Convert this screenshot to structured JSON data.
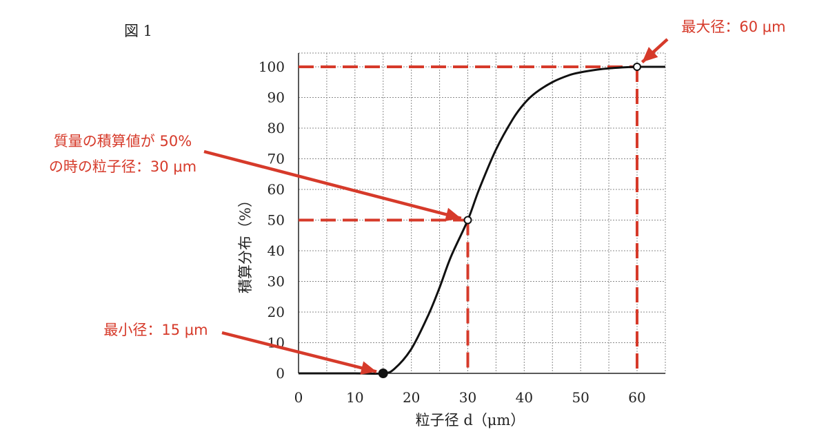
{
  "figure_label": "図 1",
  "colors": {
    "curve": "#111111",
    "grid": "#888888",
    "annotation": "#d63a2a",
    "axis": "#222222"
  },
  "chart_data": {
    "type": "line",
    "title": "",
    "xlabel": "粒子径 d（μm）",
    "ylabel": "積算分布（%）",
    "xlim": [
      0,
      65
    ],
    "ylim": [
      0,
      100
    ],
    "x_ticks": [
      0,
      10,
      20,
      30,
      40,
      50,
      60
    ],
    "y_ticks": [
      0,
      10,
      20,
      30,
      40,
      50,
      60,
      70,
      80,
      90,
      100
    ],
    "x_minor_step": 5,
    "y_minor_step": 10,
    "grid": true,
    "series": [
      {
        "x": [
          0,
          5,
          10,
          15,
          17,
          20,
          23,
          25,
          27,
          30,
          32,
          35,
          38,
          40,
          42,
          45,
          48,
          50,
          53,
          55,
          58,
          60,
          62,
          65
        ],
        "y": [
          0,
          0,
          0,
          0,
          1.5,
          8,
          19,
          28,
          38,
          50,
          60,
          73,
          83,
          88,
          91.5,
          95,
          97.3,
          98.2,
          99.1,
          99.5,
          99.85,
          100,
          100,
          100
        ]
      }
    ],
    "points": [
      {
        "x": 15,
        "y": 0,
        "style": "filled"
      },
      {
        "x": 30,
        "y": 50,
        "style": "open"
      },
      {
        "x": 60,
        "y": 100,
        "style": "open"
      }
    ],
    "annotations": [
      {
        "lines": [
          "最大径：60 μm"
        ],
        "target": {
          "x": 60,
          "y": 100
        }
      },
      {
        "lines": [
          "質量の積算値が 50%",
          "の時の粒子径：30 μm"
        ],
        "target": {
          "x": 30,
          "y": 50
        }
      },
      {
        "lines": [
          "最小径：15 μm"
        ],
        "target": {
          "x": 15,
          "y": 0
        }
      }
    ],
    "reference_lines": [
      {
        "x": 30,
        "y": 50
      },
      {
        "x": 60,
        "y": 100
      }
    ]
  }
}
